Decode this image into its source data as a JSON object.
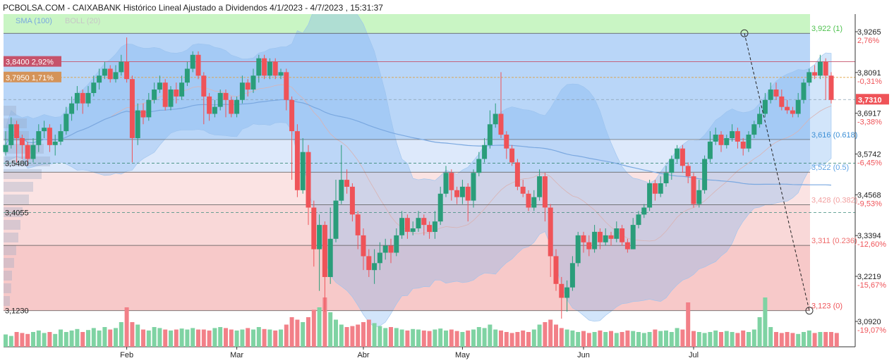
{
  "title": "PCBOLSA.COM - CAIXABANK Histórico Lineal Ajustado a Dividendos 4/1/2023 - 4/7/2023 , 15:31:37",
  "colors": {
    "up": "#2a9d7a",
    "down": "#ef5358",
    "vol_up": "#7fd3a3",
    "vol_down": "#f28088",
    "sma": "#7aa8e0",
    "boll_fill": "#7fb4f0",
    "zone_top": "#c9f5c4",
    "zone_blue": "#b9d6f8",
    "zone_light": "#dde9fb",
    "zone_pink": "#fbe3e3",
    "zone_red": "#f7c9c9"
  },
  "indicators": {
    "sma_label": "SMA (100)",
    "boll_label": "BOLL (20)"
  },
  "chart_data": {
    "type": "candlestick",
    "symbol": "CAIXABANK",
    "ylim": [
      3.06,
      4.0
    ],
    "y_ticks": [
      {
        "price": "3,9265",
        "pct": "2,76%"
      },
      {
        "price": "3,8091",
        "pct": "-0,31%"
      },
      {
        "price": "3,6917",
        "pct": "-3,38%"
      },
      {
        "price": "3,5742",
        "pct": "-6,45%"
      },
      {
        "price": "3,4568",
        "pct": "-9,53%"
      },
      {
        "price": "3,3394",
        "pct": "-12,60%"
      },
      {
        "price": "3,2219",
        "pct": "-15,67%"
      },
      {
        "price": "3,0920",
        "pct": "-19,07%"
      }
    ],
    "y_tick_values": [
      3.9265,
      3.8091,
      3.6917,
      3.5742,
      3.4568,
      3.3394,
      3.2219,
      3.092
    ],
    "x_labels": [
      {
        "label": "Feb",
        "index": 22
      },
      {
        "label": "Mar",
        "index": 42
      },
      {
        "label": "Abr",
        "index": 65
      },
      {
        "label": "May",
        "index": 83
      },
      {
        "label": "Jun",
        "index": 105
      },
      {
        "label": "Jul",
        "index": 125
      }
    ],
    "fib_levels": [
      {
        "label": "3,922 (1)",
        "value": 3.922,
        "color": "#4fc24f"
      },
      {
        "label": "3,616 (0.618)",
        "value": 3.616,
        "color": "#3b8fd6"
      },
      {
        "label": "3,522 (0.5)",
        "value": 3.522,
        "color": "#5fa3e6"
      },
      {
        "label": "3,428 (0.382)",
        "value": 3.428,
        "color": "#f2a0a0"
      },
      {
        "label": "3,311 (0.236)",
        "value": 3.311,
        "color": "#ef6c6c"
      },
      {
        "label": "3,123 (0)",
        "value": 3.123,
        "color": "#ef5358"
      }
    ],
    "left_labels": [
      {
        "label": "3,8400  2,92%",
        "value": 3.84,
        "bg": "#c6536b"
      },
      {
        "label": "3,7950  1,71%",
        "value": 3.795,
        "bg": "#d49359"
      },
      {
        "label": "3,5480",
        "value": 3.548,
        "bg": "none"
      },
      {
        "label": "3,4055",
        "value": 3.4055,
        "bg": "none"
      },
      {
        "label": "3,1230",
        "value": 3.123,
        "bg": "none"
      }
    ],
    "last_price": {
      "label": "3,7310",
      "value": 3.731
    },
    "candles": [
      [
        3.58,
        3.6,
        3.64,
        3.57
      ],
      [
        3.6,
        3.66,
        3.68,
        3.59
      ],
      [
        3.66,
        3.62,
        3.67,
        3.55
      ],
      [
        3.62,
        3.6,
        3.63,
        3.56
      ],
      [
        3.6,
        3.56,
        3.61,
        3.54
      ],
      [
        3.56,
        3.6,
        3.62,
        3.55
      ],
      [
        3.6,
        3.64,
        3.66,
        3.58
      ],
      [
        3.64,
        3.65,
        3.67,
        3.62
      ],
      [
        3.65,
        3.6,
        3.66,
        3.58
      ],
      [
        3.6,
        3.61,
        3.63,
        3.57
      ],
      [
        3.61,
        3.64,
        3.66,
        3.6
      ],
      [
        3.64,
        3.69,
        3.71,
        3.63
      ],
      [
        3.69,
        3.72,
        3.74,
        3.67
      ],
      [
        3.72,
        3.75,
        3.77,
        3.7
      ],
      [
        3.75,
        3.72,
        3.76,
        3.69
      ],
      [
        3.72,
        3.75,
        3.77,
        3.71
      ],
      [
        3.75,
        3.78,
        3.8,
        3.74
      ],
      [
        3.78,
        3.8,
        3.82,
        3.76
      ],
      [
        3.8,
        3.82,
        3.84,
        3.79
      ],
      [
        3.82,
        3.79,
        3.83,
        3.78
      ],
      [
        3.79,
        3.81,
        3.83,
        3.78
      ],
      [
        3.81,
        3.84,
        3.86,
        3.8
      ],
      [
        3.84,
        3.79,
        3.91,
        3.78
      ],
      [
        3.79,
        3.62,
        3.8,
        3.55
      ],
      [
        3.62,
        3.7,
        3.72,
        3.6
      ],
      [
        3.7,
        3.68,
        3.72,
        3.66
      ],
      [
        3.68,
        3.73,
        3.75,
        3.67
      ],
      [
        3.73,
        3.76,
        3.78,
        3.72
      ],
      [
        3.76,
        3.78,
        3.8,
        3.75
      ],
      [
        3.78,
        3.71,
        3.79,
        3.7
      ],
      [
        3.71,
        3.76,
        3.77,
        3.7
      ],
      [
        3.76,
        3.74,
        3.78,
        3.72
      ],
      [
        3.74,
        3.78,
        3.8,
        3.73
      ],
      [
        3.78,
        3.82,
        3.84,
        3.77
      ],
      [
        3.82,
        3.86,
        3.87,
        3.81
      ],
      [
        3.86,
        3.8,
        3.87,
        3.79
      ],
      [
        3.8,
        3.74,
        3.81,
        3.66
      ],
      [
        3.74,
        3.69,
        3.75,
        3.67
      ],
      [
        3.69,
        3.71,
        3.73,
        3.68
      ],
      [
        3.71,
        3.75,
        3.76,
        3.7
      ],
      [
        3.75,
        3.73,
        3.76,
        3.68
      ],
      [
        3.73,
        3.69,
        3.74,
        3.68
      ],
      [
        3.69,
        3.73,
        3.74,
        3.68
      ],
      [
        3.73,
        3.78,
        3.8,
        3.72
      ],
      [
        3.78,
        3.76,
        3.79,
        3.74
      ],
      [
        3.76,
        3.8,
        3.82,
        3.75
      ],
      [
        3.8,
        3.85,
        3.86,
        3.78
      ],
      [
        3.85,
        3.8,
        3.86,
        3.79
      ],
      [
        3.8,
        3.84,
        3.85,
        3.79
      ],
      [
        3.84,
        3.8,
        3.85,
        3.79
      ],
      [
        3.8,
        3.81,
        3.82,
        3.79
      ],
      [
        3.81,
        3.73,
        3.82,
        3.7
      ],
      [
        3.73,
        3.64,
        3.74,
        3.5
      ],
      [
        3.64,
        3.47,
        3.66,
        3.45
      ],
      [
        3.47,
        3.58,
        3.62,
        3.46
      ],
      [
        3.58,
        3.42,
        3.6,
        3.37
      ],
      [
        3.42,
        3.3,
        3.44,
        3.25
      ],
      [
        3.3,
        3.37,
        3.4,
        3.18
      ],
      [
        3.37,
        3.22,
        3.38,
        3.12
      ],
      [
        3.22,
        3.33,
        3.42,
        3.2
      ],
      [
        3.33,
        3.44,
        3.5,
        3.32
      ],
      [
        3.44,
        3.5,
        3.6,
        3.43
      ],
      [
        3.5,
        3.48,
        3.53,
        3.46
      ],
      [
        3.48,
        3.4,
        3.49,
        3.38
      ],
      [
        3.4,
        3.34,
        3.41,
        3.3
      ],
      [
        3.34,
        3.28,
        3.36,
        3.24
      ],
      [
        3.28,
        3.24,
        3.3,
        3.22
      ],
      [
        3.24,
        3.26,
        3.3,
        3.2
      ],
      [
        3.26,
        3.29,
        3.32,
        3.24
      ],
      [
        3.29,
        3.31,
        3.33,
        3.27
      ],
      [
        3.31,
        3.29,
        3.33,
        3.26
      ],
      [
        3.29,
        3.34,
        3.36,
        3.28
      ],
      [
        3.34,
        3.39,
        3.41,
        3.33
      ],
      [
        3.39,
        3.35,
        3.4,
        3.33
      ],
      [
        3.35,
        3.36,
        3.38,
        3.34
      ],
      [
        3.36,
        3.39,
        3.41,
        3.35
      ],
      [
        3.39,
        3.37,
        3.4,
        3.34
      ],
      [
        3.37,
        3.35,
        3.38,
        3.33
      ],
      [
        3.35,
        3.38,
        3.41,
        3.33
      ],
      [
        3.38,
        3.46,
        3.48,
        3.37
      ],
      [
        3.46,
        3.52,
        3.54,
        3.45
      ],
      [
        3.52,
        3.47,
        3.53,
        3.44
      ],
      [
        3.47,
        3.45,
        3.48,
        3.43
      ],
      [
        3.45,
        3.48,
        3.5,
        3.43
      ],
      [
        3.48,
        3.44,
        3.49,
        3.38
      ],
      [
        3.44,
        3.52,
        3.53,
        3.42
      ],
      [
        3.52,
        3.56,
        3.58,
        3.51
      ],
      [
        3.56,
        3.6,
        3.62,
        3.55
      ],
      [
        3.6,
        3.66,
        3.7,
        3.59
      ],
      [
        3.66,
        3.69,
        3.72,
        3.65
      ],
      [
        3.69,
        3.63,
        3.81,
        3.62
      ],
      [
        3.63,
        3.59,
        3.64,
        3.56
      ],
      [
        3.59,
        3.55,
        3.6,
        3.54
      ],
      [
        3.55,
        3.48,
        3.56,
        3.47
      ],
      [
        3.48,
        3.46,
        3.5,
        3.45
      ],
      [
        3.46,
        3.42,
        3.47,
        3.41
      ],
      [
        3.42,
        3.45,
        3.47,
        3.41
      ],
      [
        3.45,
        3.51,
        3.53,
        3.44
      ],
      [
        3.51,
        3.42,
        3.52,
        3.38
      ],
      [
        3.42,
        3.28,
        3.43,
        3.22
      ],
      [
        3.28,
        3.2,
        3.3,
        3.18
      ],
      [
        3.2,
        3.16,
        3.22,
        3.1
      ],
      [
        3.16,
        3.19,
        3.21,
        3.12
      ],
      [
        3.19,
        3.26,
        3.28,
        3.18
      ],
      [
        3.26,
        3.34,
        3.35,
        3.25
      ],
      [
        3.34,
        3.32,
        3.35,
        3.29
      ],
      [
        3.32,
        3.3,
        3.34,
        3.28
      ],
      [
        3.3,
        3.35,
        3.37,
        3.29
      ],
      [
        3.35,
        3.32,
        3.36,
        3.3
      ],
      [
        3.32,
        3.34,
        3.36,
        3.31
      ],
      [
        3.34,
        3.33,
        3.35,
        3.31
      ],
      [
        3.33,
        3.36,
        3.38,
        3.32
      ],
      [
        3.36,
        3.32,
        3.37,
        3.31
      ],
      [
        3.32,
        3.3,
        3.33,
        3.29
      ],
      [
        3.3,
        3.37,
        3.39,
        3.3
      ],
      [
        3.37,
        3.4,
        3.41,
        3.36
      ],
      [
        3.4,
        3.42,
        3.43,
        3.39
      ],
      [
        3.42,
        3.49,
        3.5,
        3.41
      ],
      [
        3.49,
        3.46,
        3.5,
        3.44
      ],
      [
        3.46,
        3.49,
        3.51,
        3.45
      ],
      [
        3.49,
        3.52,
        3.54,
        3.48
      ],
      [
        3.52,
        3.56,
        3.57,
        3.5
      ],
      [
        3.56,
        3.59,
        3.6,
        3.55
      ],
      [
        3.59,
        3.54,
        3.6,
        3.52
      ],
      [
        3.54,
        3.51,
        3.55,
        3.49
      ],
      [
        3.51,
        3.43,
        3.52,
        3.42
      ],
      [
        3.43,
        3.47,
        3.5,
        3.42
      ],
      [
        3.47,
        3.56,
        3.57,
        3.46
      ],
      [
        3.56,
        3.61,
        3.64,
        3.55
      ],
      [
        3.61,
        3.63,
        3.65,
        3.6
      ],
      [
        3.63,
        3.6,
        3.64,
        3.58
      ],
      [
        3.6,
        3.62,
        3.63,
        3.59
      ],
      [
        3.62,
        3.64,
        3.66,
        3.61
      ],
      [
        3.64,
        3.61,
        3.65,
        3.59
      ],
      [
        3.61,
        3.59,
        3.62,
        3.57
      ],
      [
        3.59,
        3.63,
        3.64,
        3.58
      ],
      [
        3.63,
        3.66,
        3.67,
        3.62
      ],
      [
        3.66,
        3.69,
        3.71,
        3.65
      ],
      [
        3.69,
        3.73,
        3.75,
        3.68
      ],
      [
        3.73,
        3.76,
        3.78,
        3.72
      ],
      [
        3.76,
        3.74,
        3.78,
        3.73
      ],
      [
        3.74,
        3.71,
        3.76,
        3.7
      ],
      [
        3.71,
        3.7,
        3.73,
        3.69
      ],
      [
        3.7,
        3.69,
        3.71,
        3.68
      ],
      [
        3.69,
        3.73,
        3.75,
        3.68
      ],
      [
        3.73,
        3.78,
        3.79,
        3.72
      ],
      [
        3.78,
        3.81,
        3.82,
        3.77
      ],
      [
        3.81,
        3.8,
        3.83,
        3.79
      ],
      [
        3.8,
        3.84,
        3.86,
        3.79
      ],
      [
        3.84,
        3.8,
        3.85,
        3.73
      ],
      [
        3.8,
        3.73,
        3.81,
        3.72
      ]
    ],
    "volume_max": 1.0,
    "volumes": [
      0.25,
      0.22,
      0.3,
      0.28,
      0.26,
      0.3,
      0.33,
      0.28,
      0.3,
      0.26,
      0.35,
      0.3,
      0.33,
      0.36,
      0.3,
      0.34,
      0.38,
      0.33,
      0.4,
      0.35,
      0.38,
      0.5,
      0.8,
      0.5,
      0.45,
      0.35,
      0.33,
      0.4,
      0.38,
      0.35,
      0.33,
      0.35,
      0.37,
      0.35,
      0.38,
      0.35,
      0.35,
      0.33,
      0.38,
      0.4,
      0.38,
      0.35,
      0.33,
      0.35,
      0.38,
      0.35,
      0.4,
      0.36,
      0.35,
      0.33,
      0.35,
      0.45,
      0.6,
      0.55,
      0.5,
      0.6,
      0.75,
      0.8,
      1.0,
      0.7,
      0.55,
      0.45,
      0.4,
      0.42,
      0.45,
      0.5,
      0.55,
      0.48,
      0.42,
      0.38,
      0.4,
      0.38,
      0.35,
      0.33,
      0.36,
      0.35,
      0.33,
      0.32,
      0.35,
      0.37,
      0.33,
      0.35,
      0.32,
      0.3,
      0.33,
      0.35,
      0.4,
      0.38,
      0.45,
      0.35,
      0.33,
      0.3,
      0.28,
      0.3,
      0.33,
      0.3,
      0.35,
      0.45,
      0.5,
      0.55,
      0.45,
      0.38,
      0.35,
      0.33,
      0.3,
      0.32,
      0.28,
      0.3,
      0.33,
      0.3,
      0.32,
      0.28,
      0.3,
      0.33,
      0.32,
      0.3,
      0.28,
      0.3,
      0.35,
      0.32,
      0.33,
      0.3,
      0.38,
      0.35,
      0.9,
      0.32,
      0.3,
      0.28,
      0.3,
      0.33,
      0.3,
      0.32,
      0.3,
      0.28,
      0.33,
      0.3,
      0.35,
      0.6,
      1.0,
      0.4,
      0.3,
      0.28,
      0.3,
      0.28,
      0.26,
      0.3,
      0.33,
      0.28,
      0.3,
      0.3,
      0.3,
      0.28
    ]
  }
}
